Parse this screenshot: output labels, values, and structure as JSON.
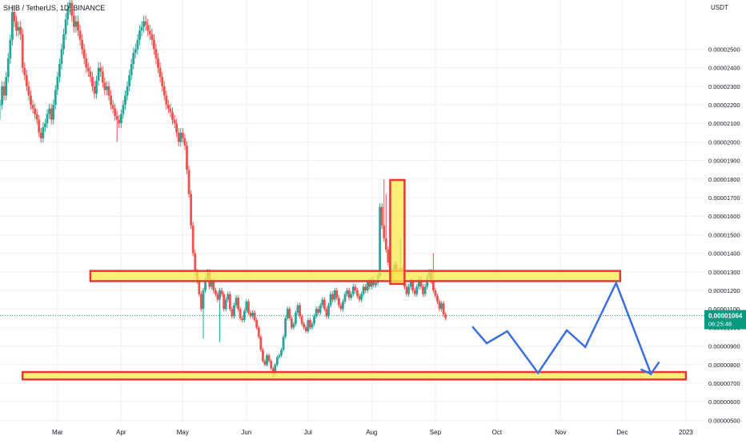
{
  "colors": {
    "up": "#26a69a",
    "down": "#ef5350",
    "grid": "#eef0f4",
    "zone_fill": "#fbe94a",
    "zone_stroke": "#e53935",
    "projection": "#3b6fe0",
    "price_badge": "#089981",
    "last_price_line": "#26a69a"
  },
  "chart_data": {
    "type": "candlestick",
    "title": "SHIB / TetherUS, 1D, BINANCE",
    "y_unit": "USDT",
    "ylim": [
      4.8e-06,
      2.765e-05
    ],
    "yticks": [
      "0.00000500",
      "0.00000600",
      "0.00000700",
      "0.00000800",
      "0.00000900",
      "0.00001000",
      "0.00001100",
      "0.00001200",
      "0.00001300",
      "0.00001400",
      "0.00001500",
      "0.00001600",
      "0.00001700",
      "0.00001800",
      "0.00001900",
      "0.00002000",
      "0.00002100",
      "0.00002200",
      "0.00002300",
      "0.00002400",
      "0.00002500"
    ],
    "xlim": [
      "2022-02-01",
      "2023-01-10"
    ],
    "xticks": [
      {
        "date": "2022-03-01",
        "label": "Mar"
      },
      {
        "date": "2022-04-01",
        "label": "Apr"
      },
      {
        "date": "2022-05-01",
        "label": "May"
      },
      {
        "date": "2022-06-01",
        "label": "Jun"
      },
      {
        "date": "2022-07-01",
        "label": "Jul"
      },
      {
        "date": "2022-08-01",
        "label": "Aug"
      },
      {
        "date": "2022-09-01",
        "label": "Sep"
      },
      {
        "date": "2022-10-01",
        "label": "Oct"
      },
      {
        "date": "2022-11-01",
        "label": "Nov"
      },
      {
        "date": "2022-12-01",
        "label": "Dec"
      },
      {
        "date": "2023-01-01",
        "label": "2023"
      }
    ],
    "grid": true,
    "candles": {
      "start_date": "2022-02-01",
      "close": [
        2.2,
        2.3,
        2.25,
        2.35,
        2.45,
        2.55,
        2.7,
        2.65,
        2.6,
        2.62,
        2.58,
        2.4,
        2.36,
        2.3,
        2.25,
        2.2,
        2.18,
        2.15,
        2.12,
        2.05,
        2.02,
        2.08,
        2.1,
        2.15,
        2.18,
        2.12,
        2.2,
        2.28,
        2.35,
        2.42,
        2.5,
        2.58,
        2.66,
        2.72,
        2.75,
        2.68,
        2.62,
        2.65,
        2.6,
        2.55,
        2.5,
        2.45,
        2.4,
        2.38,
        2.35,
        2.3,
        2.26,
        2.33,
        2.4,
        2.38,
        2.32,
        2.28,
        2.3,
        2.25,
        2.2,
        2.18,
        2.14,
        2.12,
        2.1,
        2.15,
        2.2,
        2.25,
        2.3,
        2.36,
        2.42,
        2.48,
        2.5,
        2.55,
        2.6,
        2.62,
        2.65,
        2.63,
        2.6,
        2.58,
        2.55,
        2.5,
        2.45,
        2.4,
        2.35,
        2.3,
        2.25,
        2.2,
        2.18,
        2.16,
        2.12,
        2.1,
        2.05,
        2.0,
        2.05,
        2.02,
        1.98,
        1.85,
        1.72,
        1.55,
        1.4,
        1.3,
        1.25,
        1.18,
        1.1,
        1.2,
        1.26,
        1.3,
        1.22,
        1.25,
        1.2,
        1.18,
        1.15,
        1.2,
        1.18,
        1.1,
        1.15,
        1.18,
        1.1,
        1.06,
        1.12,
        1.16,
        1.1,
        1.05,
        1.04,
        1.09,
        1.14,
        1.08,
        1.06,
        1.08,
        1.04,
        1.0,
        0.95,
        0.88,
        0.82,
        0.8,
        0.85,
        0.82,
        0.78,
        0.75,
        0.8,
        0.84,
        0.85,
        0.88,
        0.95,
        1.05,
        1.1,
        1.05,
        1.0,
        1.02,
        1.08,
        1.12,
        1.06,
        1.02,
        1.0,
        0.98,
        1.04,
        1.0,
        1.02,
        1.06,
        1.1,
        1.08,
        1.12,
        1.15,
        1.1,
        1.06,
        1.12,
        1.18,
        1.15,
        1.2,
        1.16,
        1.12,
        1.1,
        1.14,
        1.18,
        1.2,
        1.16,
        1.18,
        1.22,
        1.2,
        1.17,
        1.15,
        1.18,
        1.22,
        1.2,
        1.25,
        1.22,
        1.26,
        1.23,
        1.24,
        1.28,
        1.65,
        1.55,
        1.48,
        1.42,
        1.35,
        1.3,
        1.26,
        1.34,
        1.3,
        1.28,
        1.32,
        1.26,
        1.22,
        1.18,
        1.22,
        1.25,
        1.2,
        1.18,
        1.22,
        1.26,
        1.22,
        1.18,
        1.22,
        1.27,
        1.3,
        1.25,
        1.2,
        1.17,
        1.14,
        1.1,
        1.13,
        1.07,
        1.05
      ],
      "spikes": {
        "0": 2.12,
        "57": 2.0,
        "91": 1.84,
        "99": 0.94,
        "107": 0.92,
        "133": 0.73,
        "187": 1.8,
        "188": 1.72,
        "195": 1.48,
        "211": 1.4,
        "220": 1.0
      }
    },
    "zones": [
      {
        "label": "resistance",
        "x0": "2022-03-17",
        "x1": "2022-11-30",
        "y0": 1.25e-05,
        "y1": 1.305e-05
      },
      {
        "label": "support",
        "x0": "2022-02-12",
        "x1": "2023-01-01",
        "y0": 7.2e-06,
        "y1": 7.6e-06
      },
      {
        "label": "spike",
        "x0": "2022-08-10",
        "x1": "2022-08-17",
        "y0": 1.235e-05,
        "y1": 1.795e-05
      }
    ],
    "projection": [
      [
        "2022-09-19",
        1.005e-05
      ],
      [
        "2022-09-26",
        9.15e-06
      ],
      [
        "2022-10-06",
        9.8e-06
      ],
      [
        "2022-10-21",
        7.55e-06
      ],
      [
        "2022-11-04",
        9.85e-06
      ],
      [
        "2022-11-13",
        8.95e-06
      ],
      [
        "2022-11-28",
        1.24e-05
      ],
      [
        "2022-12-15",
        7.5e-06
      ],
      [
        "2022-12-19",
        8.15e-06
      ]
    ],
    "projection_arrowhead": [
      "2022-12-10",
      7.75e-06
    ],
    "last_price": {
      "value": 1.064e-05,
      "label": "0.00001064",
      "countdown": "06:25:48"
    }
  }
}
